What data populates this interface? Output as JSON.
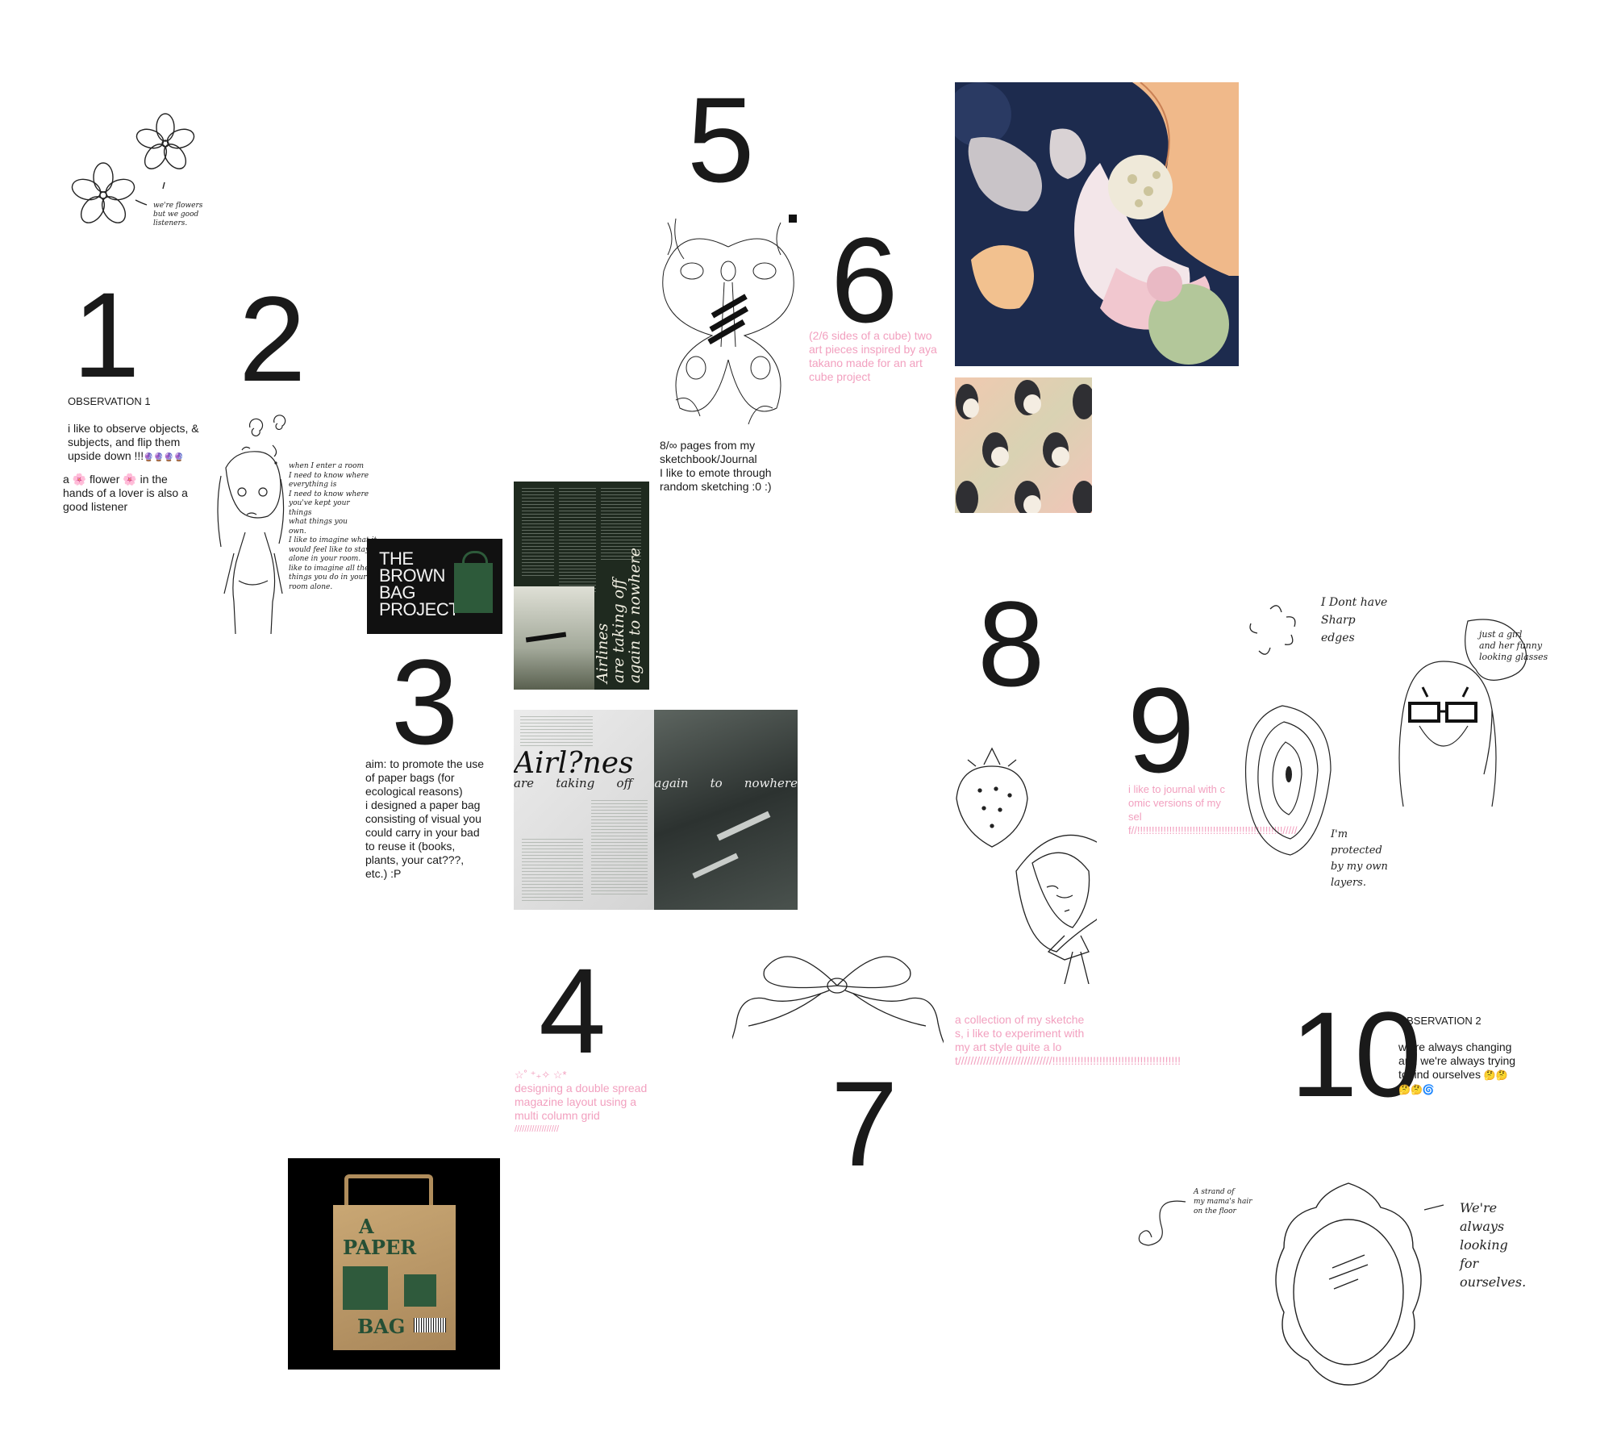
{
  "numbers": [
    "1",
    "2",
    "3",
    "4",
    "5",
    "6",
    "7",
    "8",
    "9",
    "10"
  ],
  "obs1": {
    "title": "OBSERVATION 1",
    "p1": "i like to observe  objects, & subjects, and flip them upside down !!!",
    "p1_emoji": "🔮🔮🔮🔮",
    "p2_a": "a ",
    "p2_flower1": "🌸",
    "p2_b": " flower ",
    "p2_flower2": "🌸",
    "p2_c": " in the hands of a lover is also a good listener"
  },
  "flowers_note": "we're flowers\nbut we good\nlisteners.",
  "note2": "when I enter a room\nI need to know where\neverything is\nI need to know where\nyou've kept your\nthings\nwhat things you\nown.\nI like to imagine what it\nwould feel like to stay\nalone in your room.\nlike to imagine all the\nthings you do in your\nroom alone.",
  "brown_bag": {
    "l1": "THE",
    "l2": "BROWN",
    "l3": "BAG",
    "l4": "PROJECT"
  },
  "p3": "aim: to promote the use of paper bags (for ecological reasons)\ni designed a paper bag consisting of visual you could carry in your bad to reuse it (books, plants, your cat???, etc.) :P",
  "airlines_vertical": {
    "l1": "Airlines",
    "l2": "are taking off",
    "l3": "again to nowhere"
  },
  "spread": {
    "title": "Airl?nes",
    "sub": [
      "are",
      "taking",
      "off",
      "again",
      "to",
      "nowhere"
    ]
  },
  "p4": {
    "stars": "☆˚ ⁺₊✧ ☆*",
    "text": "designing a double spread magazine layout using a multi column grid",
    "slashes": "//////////////////"
  },
  "paper_bag": {
    "l1": "A",
    "l2": "PAPER",
    "l3": "BAG"
  },
  "p5": "8/∞ pages from my sketchbook/Journal\nI like to emote through random sketching :0 :)",
  "p6": "(2/6 sides of a cube) two art pieces inspired by aya takano made for an art cube project",
  "p8": "a collection of my sketches, i like to experiment with my art style quite a lot//////////////////////////////!!!!!!!!!!!!!!!!!!!!!!!!!!!!!!!!!!!!!!!!!",
  "p9": "i like to journal with comic versions of myself//!!!!!!!!!!!!!!!!!!!!!!!!!!!!!!!!!!!!!!!!!!!!!!!!!!/////",
  "obs2": {
    "title": "OBSERVATION 2",
    "p": "we're always changing  and  we're always trying to find ourselves",
    "emoji": "🤔🤔🤔🤔🌀"
  },
  "note9a": "I Dont have\nSharp\nedges",
  "note9b": "just a girl\nand her funny\nlooking glasses",
  "note9c": "I'm\nprotected\nby my own\nlayers.",
  "note10a": "A strand of\nmy mama's hair\non the floor",
  "note10b": "We're\nalways\nlooking\nfor\nourselves."
}
